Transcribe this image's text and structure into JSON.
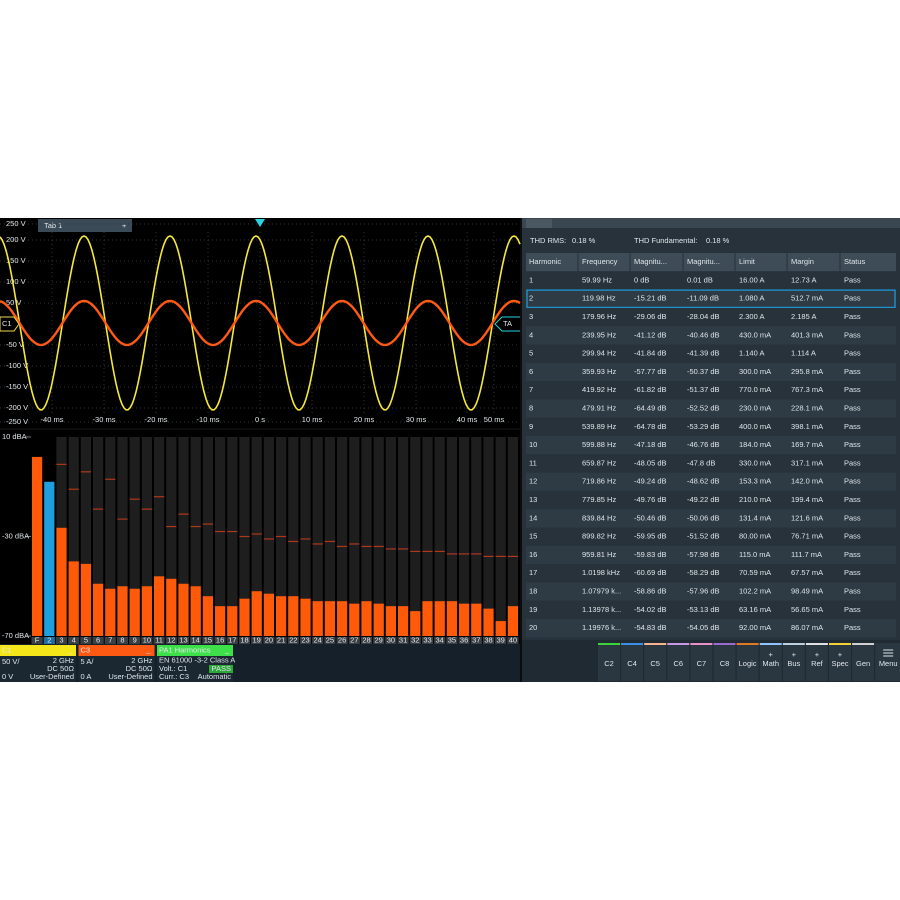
{
  "waveform": {
    "tab": "Tab 1",
    "tab_add": "+",
    "y_labels": [
      "250 V",
      "200 V",
      "150 V",
      "100 V",
      "50 V",
      "-50 V",
      "-100 V",
      "-150 V",
      "-200 V",
      "-250 V"
    ],
    "x_labels": [
      "-40 ms",
      "-30 ms",
      "-20 ms",
      "-10 ms",
      "0 s",
      "10 ms",
      "20 ms",
      "30 ms",
      "40 ms",
      "50 ms"
    ],
    "channel_marker": "C1",
    "trigger_marker": "TA"
  },
  "chart_data": {
    "type": "bar",
    "categories": [
      "F",
      "2",
      "3",
      "4",
      "5",
      "6",
      "7",
      "8",
      "9",
      "10",
      "11",
      "12",
      "13",
      "14",
      "15",
      "16",
      "17",
      "18",
      "19",
      "20",
      "21",
      "22",
      "23",
      "24",
      "25",
      "26",
      "27",
      "28",
      "29",
      "30",
      "31",
      "32",
      "33",
      "34",
      "35",
      "36",
      "37",
      "38",
      "39",
      "40"
    ],
    "values": [
      2,
      -8,
      -26.5,
      -40,
      -41,
      -49,
      -51,
      -50,
      -51,
      -50,
      -46,
      -47,
      -49,
      -50,
      -54,
      -58,
      -58,
      -55,
      -52,
      -53,
      -54,
      -54,
      -55,
      -56,
      -56,
      -56,
      -57,
      -56,
      -57,
      -58,
      -58,
      -60,
      -56,
      -56,
      -56,
      -57,
      -57,
      -59,
      -64,
      -58
    ],
    "limits": [
      null,
      null,
      -1,
      -11,
      -4,
      -19,
      -7,
      -23,
      -15,
      -19,
      -14,
      -26,
      -21,
      -26,
      -25,
      -28,
      -28,
      -30,
      -29,
      -31,
      -30,
      -32,
      -31,
      -33,
      -32,
      -34,
      -33,
      -34,
      -34,
      -35,
      -35,
      -36,
      -36,
      -36,
      -37,
      -37,
      -37,
      -38,
      -38,
      -38
    ],
    "color": "#ff5a0a",
    "limit_color": "#b0381a",
    "highlight": 1,
    "highlight_color": "#1e9fe0",
    "ylim": [
      -70,
      10
    ],
    "yticks": [
      {
        "value": 10,
        "label": "10 dBA"
      },
      {
        "value": -30,
        "label": "-30 dBA"
      },
      {
        "value": -70,
        "label": "-70 dBA"
      }
    ]
  },
  "measurements": {
    "thd_rms_label": "THD RMS:",
    "thd_rms": "0.18 %",
    "thd_fund_label": "THD Fundamental:",
    "thd_fund": "0.18 %"
  },
  "table": {
    "headers": [
      "Harmonic",
      "Frequency",
      "Magnitu...",
      "Magnitu...",
      "Limit",
      "Margin",
      "Status"
    ],
    "selected": 1,
    "rows": [
      [
        "1",
        "59.99 Hz",
        "0 dB",
        "0.01 dB",
        "16.00 A",
        "12.73 A",
        "Pass"
      ],
      [
        "2",
        "119.98 Hz",
        "-15.21 dB",
        "-11.09 dB",
        "1.080 A",
        "512.7 mA",
        "Pass"
      ],
      [
        "3",
        "179.96 Hz",
        "-29.06 dB",
        "-28.04 dB",
        "2.300 A",
        "2.185 A",
        "Pass"
      ],
      [
        "4",
        "239.95 Hz",
        "-41.12 dB",
        "-40.46 dB",
        "430.0 mA",
        "401.3 mA",
        "Pass"
      ],
      [
        "5",
        "299.94 Hz",
        "-41.84 dB",
        "-41.39 dB",
        "1.140 A",
        "1.114 A",
        "Pass"
      ],
      [
        "6",
        "359.93 Hz",
        "-57.77 dB",
        "-50.37 dB",
        "300.0 mA",
        "295.8 mA",
        "Pass"
      ],
      [
        "7",
        "419.92 Hz",
        "-61.82 dB",
        "-51.37 dB",
        "770.0 mA",
        "767.3 mA",
        "Pass"
      ],
      [
        "8",
        "479.91 Hz",
        "-64.49 dB",
        "-52.52 dB",
        "230.0 mA",
        "228.1 mA",
        "Pass"
      ],
      [
        "9",
        "539.89 Hz",
        "-64.78 dB",
        "-53.29 dB",
        "400.0 mA",
        "398.1 mA",
        "Pass"
      ],
      [
        "10",
        "599.88 Hz",
        "-47.18 dB",
        "-46.76 dB",
        "184.0 mA",
        "169.7 mA",
        "Pass"
      ],
      [
        "11",
        "659.87 Hz",
        "-48.05 dB",
        "-47.8 dB",
        "330.0 mA",
        "317.1 mA",
        "Pass"
      ],
      [
        "12",
        "719.86 Hz",
        "-49.24 dB",
        "-48.62 dB",
        "153.3 mA",
        "142.0 mA",
        "Pass"
      ],
      [
        "13",
        "779.85 Hz",
        "-49.76 dB",
        "-49.22 dB",
        "210.0 mA",
        "199.4 mA",
        "Pass"
      ],
      [
        "14",
        "839.84 Hz",
        "-50.46 dB",
        "-50.06 dB",
        "131.4 mA",
        "121.6 mA",
        "Pass"
      ],
      [
        "15",
        "899.82 Hz",
        "-59.95 dB",
        "-51.52 dB",
        "80.00 mA",
        "76.71 mA",
        "Pass"
      ],
      [
        "16",
        "959.81 Hz",
        "-59.83 dB",
        "-57.98 dB",
        "115.0 mA",
        "111.7 mA",
        "Pass"
      ],
      [
        "17",
        "1.0198 kHz",
        "-60.69 dB",
        "-58.29 dB",
        "70.59 mA",
        "67.57 mA",
        "Pass"
      ],
      [
        "18",
        "1.07979 k...",
        "-58.86 dB",
        "-57.96 dB",
        "102.2 mA",
        "98.49 mA",
        "Pass"
      ],
      [
        "19",
        "1.13978 k...",
        "-54.02 dB",
        "-53.13 dB",
        "63.16 mA",
        "56.65 mA",
        "Pass"
      ],
      [
        "20",
        "1.19976 k...",
        "-54.83 dB",
        "-54.05 dB",
        "92.00 mA",
        "86.07 mA",
        "Pass"
      ]
    ]
  },
  "badges": [
    {
      "title": "C1",
      "collapse": "_",
      "scale": "50 V/",
      "bandwidth": "2 GHz",
      "coupling": "DC 50Ω",
      "offset": "0 V",
      "mode": "User-Defined"
    },
    {
      "title": "C3",
      "collapse": "_",
      "scale": "5 A/",
      "bandwidth": "2 GHz",
      "coupling": "DC 50Ω",
      "offset": "0 A",
      "mode": "User-Defined"
    },
    {
      "title": "PA1 Harmonics",
      "collapse": "_",
      "standard": "EN 61000 -3-2 Class A",
      "volt": "Volt.: C1",
      "curr": "Curr.: C3",
      "result": "PASS",
      "mode": "Automatic"
    }
  ],
  "buttons": [
    {
      "label": "C2"
    },
    {
      "label": "C4"
    },
    {
      "label": "C5"
    },
    {
      "label": "C6"
    },
    {
      "label": "C7"
    },
    {
      "label": "C8"
    },
    {
      "label": "Logic"
    },
    {
      "label": "Math",
      "plus": "+"
    },
    {
      "label": "Bus",
      "plus": "+"
    },
    {
      "label": "Ref",
      "plus": "+"
    },
    {
      "label": "Spec",
      "plus": "+"
    },
    {
      "label": "Gen"
    },
    {
      "label": "Menu"
    }
  ]
}
